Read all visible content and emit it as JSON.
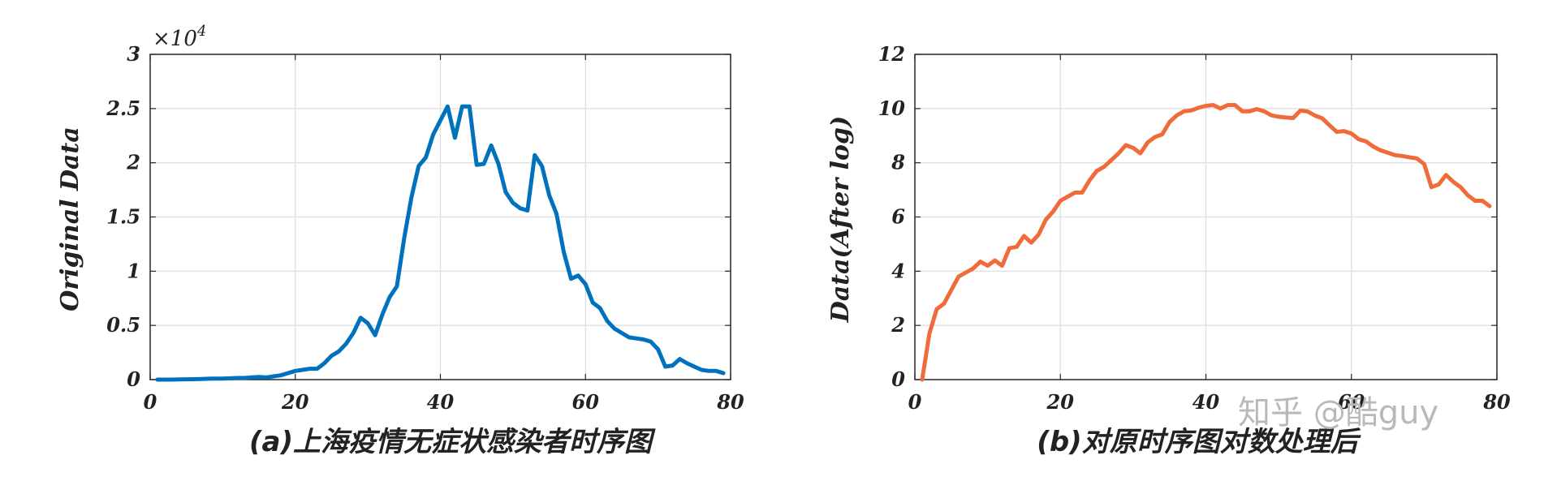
{
  "chart_data": [
    {
      "type": "line",
      "multiplier_label": "×10",
      "multiplier_exp": "4",
      "ylabel": "Original Data",
      "caption": "(a)上海疫情无症状感染者时序图",
      "xlim": [
        0,
        80
      ],
      "ylim": [
        0,
        30000
      ],
      "x_ticks": [
        "0",
        "20",
        "40",
        "60",
        "80"
      ],
      "y_ticks": [
        "0",
        "0.5",
        "1",
        "1.5",
        "2",
        "2.5",
        "3"
      ],
      "grid": true,
      "color": "#0072bd",
      "x": [
        1,
        2,
        3,
        4,
        5,
        6,
        7,
        8,
        9,
        10,
        11,
        12,
        13,
        14,
        15,
        16,
        17,
        18,
        19,
        20,
        21,
        22,
        23,
        24,
        25,
        26,
        27,
        28,
        29,
        30,
        31,
        32,
        33,
        34,
        35,
        36,
        37,
        38,
        39,
        40,
        41,
        42,
        43,
        44,
        45,
        46,
        47,
        48,
        49,
        50,
        51,
        52,
        53,
        54,
        55,
        56,
        57,
        58,
        59,
        60,
        61,
        62,
        63,
        64,
        65,
        66,
        67,
        68,
        69,
        70,
        71,
        72,
        73,
        74,
        75,
        76,
        77,
        78,
        79
      ],
      "y": [
        0,
        0,
        0,
        20,
        30,
        40,
        50,
        80,
        100,
        100,
        120,
        150,
        150,
        200,
        250,
        200,
        300,
        400,
        600,
        800,
        900,
        1000,
        1000,
        1500,
        2200,
        2600,
        3300,
        4300,
        5700,
        5200,
        4100,
        6000,
        7600,
        8600,
        13000,
        16800,
        19700,
        20500,
        22600,
        23900,
        25200,
        22300,
        25200,
        25200,
        19800,
        19900,
        21600,
        19900,
        17300,
        16300,
        15800,
        15600,
        20700,
        19700,
        17000,
        15300,
        11800,
        9300,
        9600,
        8800,
        7100,
        6600,
        5400,
        4700,
        4300,
        3900,
        3800,
        3700,
        3500,
        2800,
        1200,
        1300,
        1900,
        1500,
        1200,
        900,
        800,
        800,
        600
      ]
    },
    {
      "type": "line",
      "ylabel": "Data(After log)",
      "caption": "(b)对原时序图对数处理后",
      "xlim": [
        0,
        80
      ],
      "ylim": [
        0,
        12
      ],
      "x_ticks": [
        "0",
        "20",
        "40",
        "60",
        "80"
      ],
      "y_ticks": [
        "0",
        "2",
        "4",
        "6",
        "8",
        "10",
        "12"
      ],
      "grid": true,
      "color": "#ef6c3a",
      "x": [
        1,
        2,
        3,
        4,
        5,
        6,
        7,
        8,
        9,
        10,
        11,
        12,
        13,
        14,
        15,
        16,
        17,
        18,
        19,
        20,
        21,
        22,
        23,
        24,
        25,
        26,
        27,
        28,
        29,
        30,
        31,
        32,
        33,
        34,
        35,
        36,
        37,
        38,
        39,
        40,
        41,
        42,
        43,
        44,
        45,
        46,
        47,
        48,
        49,
        50,
        51,
        52,
        53,
        54,
        55,
        56,
        57,
        58,
        59,
        60,
        61,
        62,
        63,
        64,
        65,
        66,
        67,
        68,
        69,
        70,
        71,
        72,
        73,
        74,
        75,
        76,
        77,
        78,
        79
      ],
      "y": [
        0,
        1.7,
        2.6,
        2.8,
        3.3,
        3.8,
        3.95,
        4.1,
        4.35,
        4.2,
        4.4,
        4.2,
        4.85,
        4.9,
        5.3,
        5.05,
        5.35,
        5.9,
        6.2,
        6.6,
        6.75,
        6.9,
        6.9,
        7.35,
        7.7,
        7.85,
        8.1,
        8.35,
        8.65,
        8.55,
        8.35,
        8.75,
        8.95,
        9.05,
        9.5,
        9.75,
        9.9,
        9.93,
        10.03,
        10.1,
        10.13,
        10.0,
        10.13,
        10.13,
        9.9,
        9.9,
        9.98,
        9.9,
        9.75,
        9.7,
        9.67,
        9.65,
        9.93,
        9.89,
        9.74,
        9.64,
        9.38,
        9.14,
        9.17,
        9.08,
        8.87,
        8.79,
        8.6,
        8.46,
        8.37,
        8.28,
        8.25,
        8.2,
        8.16,
        7.95,
        7.1,
        7.2,
        7.55,
        7.3,
        7.1,
        6.8,
        6.6,
        6.6,
        6.4
      ]
    }
  ],
  "watermark": "知乎 @酷guy"
}
